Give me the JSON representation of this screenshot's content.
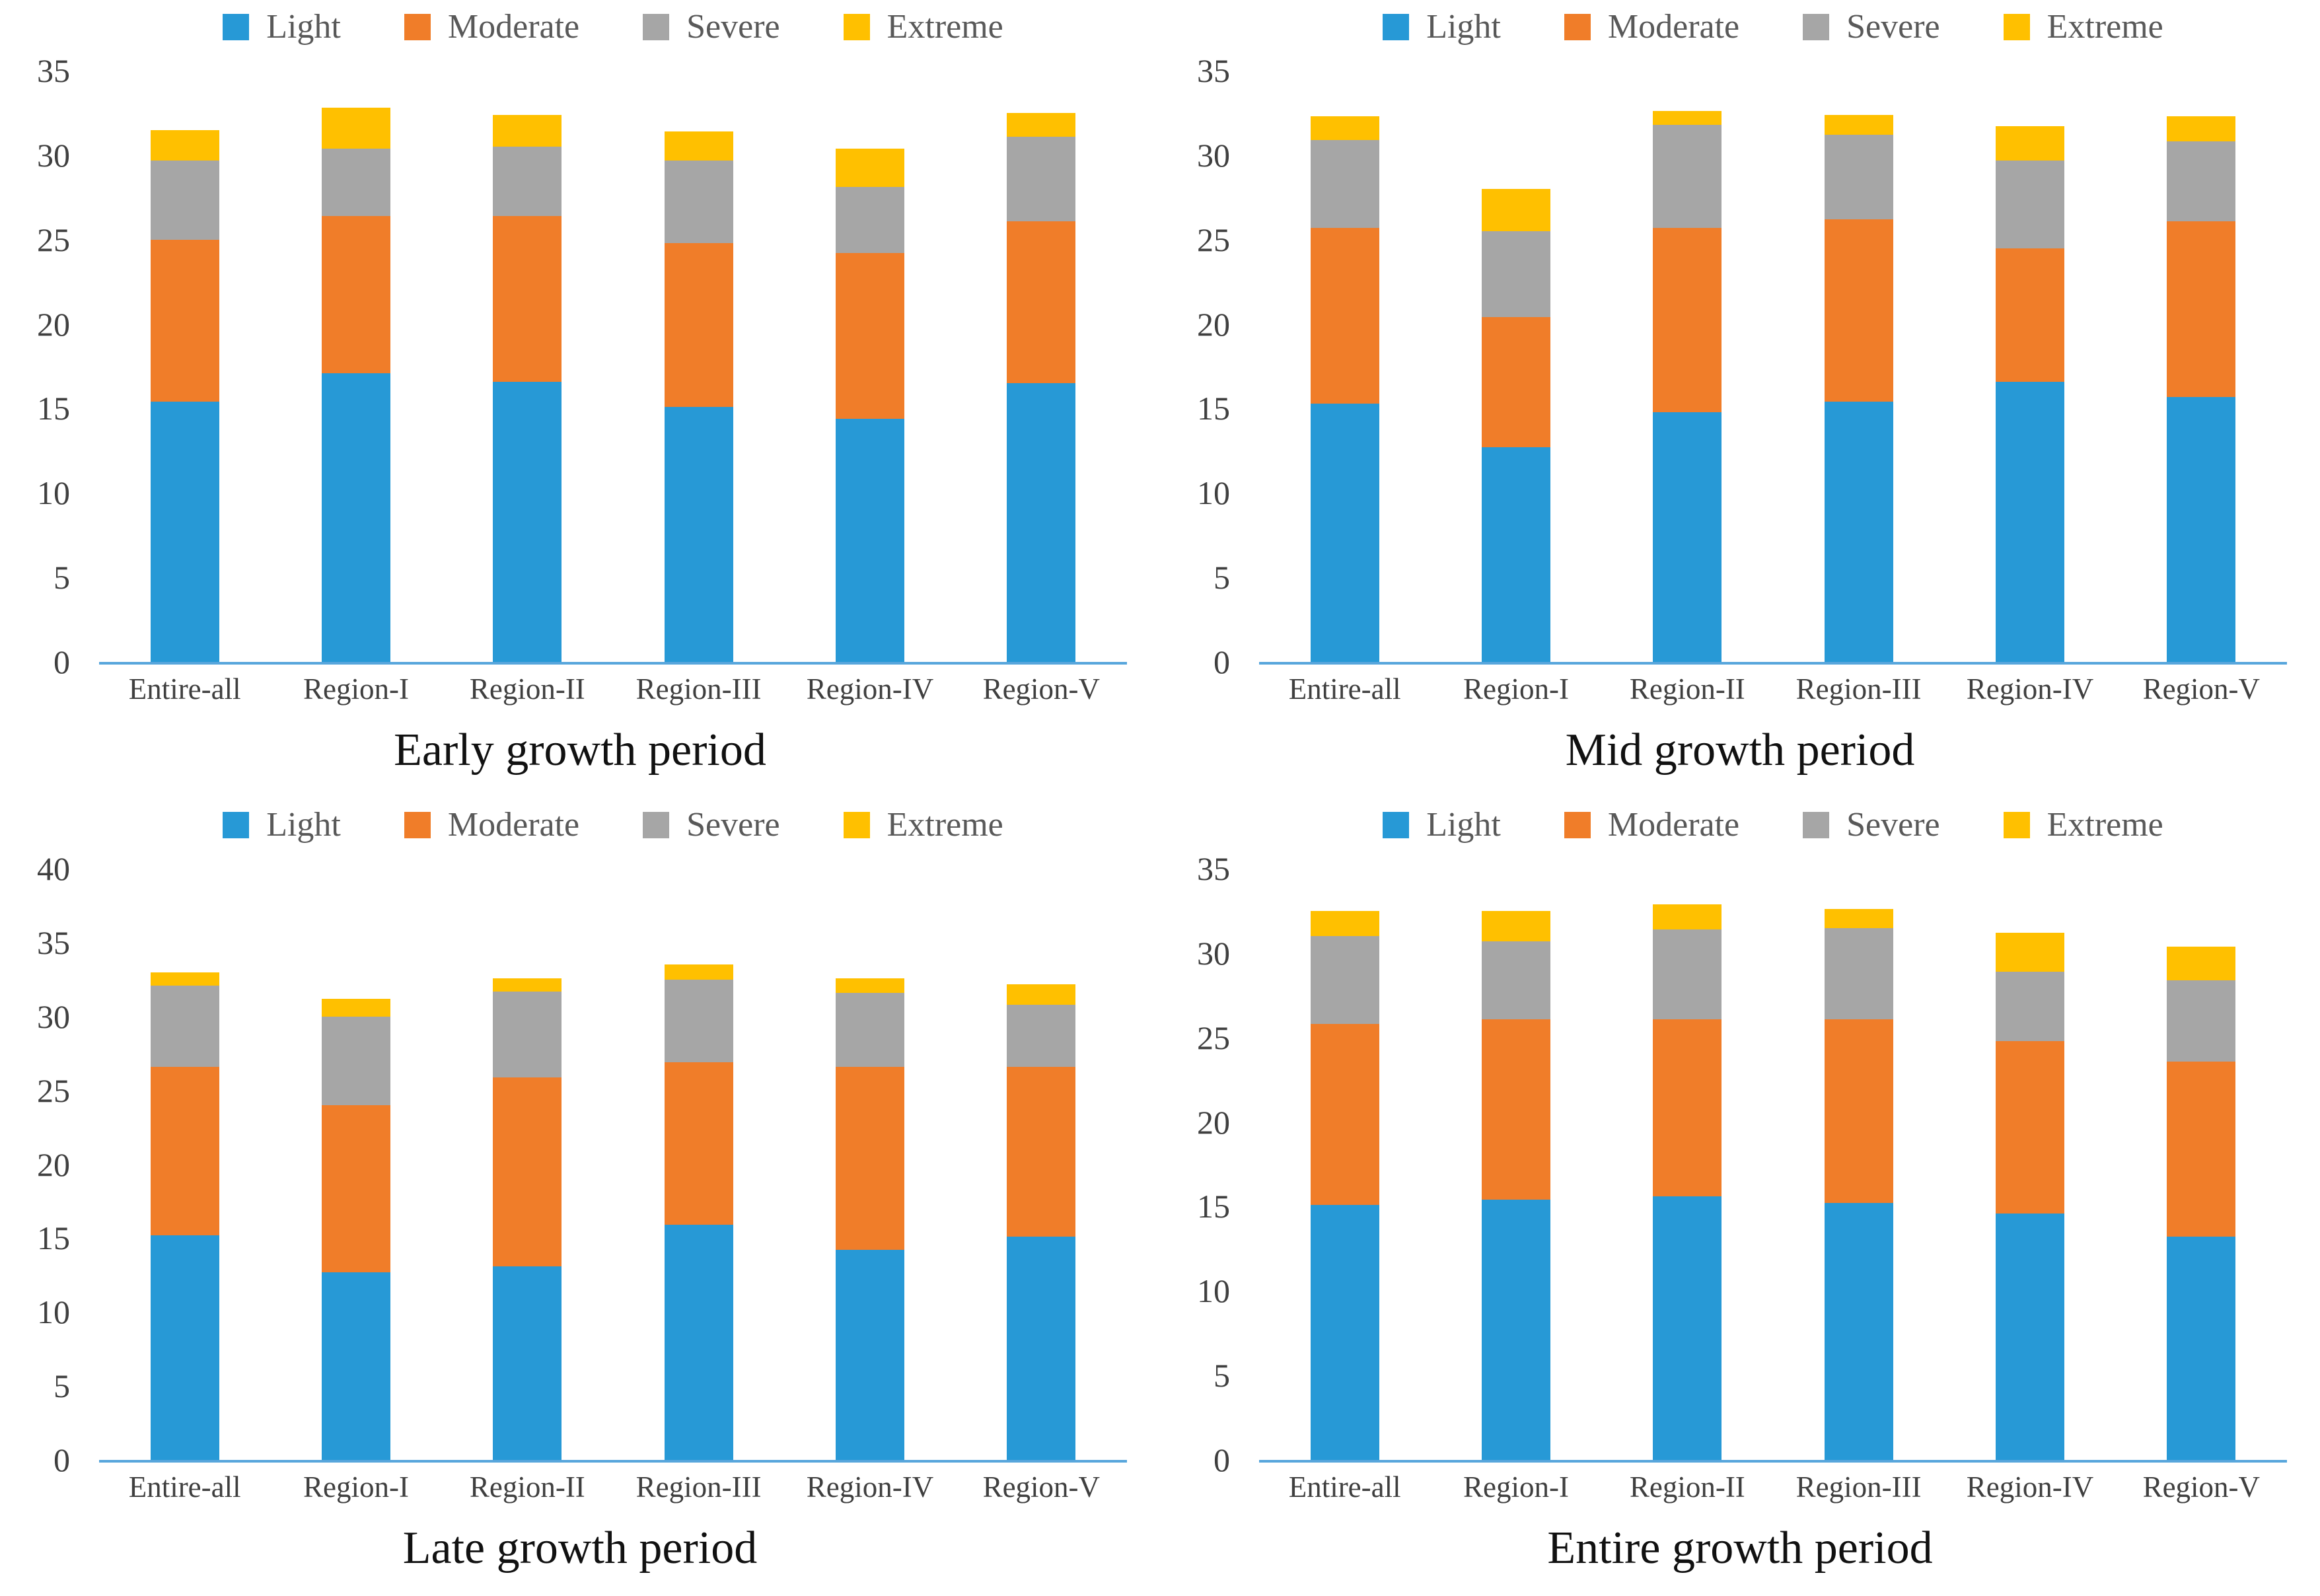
{
  "figure": {
    "background": "#ffffff",
    "panel_captions": [
      "Early growth period",
      "Mid growth period",
      "Late growth period",
      "Entire growth period"
    ]
  },
  "colors": {
    "light": "#2799d6",
    "moderate": "#f07d29",
    "severe": "#a6a6a6",
    "extreme": "#ffc000",
    "baseline_axis": "#58a6dc",
    "tick_text": "#3f3f3f",
    "legend_text": "#595959",
    "caption_text": "#111111"
  },
  "legend": {
    "items": [
      {
        "label": "Light",
        "color": "#2799d6",
        "swatch": "light-swatch"
      },
      {
        "label": "Moderate",
        "color": "#f07d29",
        "swatch": "moderate-swatch"
      },
      {
        "label": "Severe",
        "color": "#a6a6a6",
        "swatch": "severe-swatch"
      },
      {
        "label": "Extreme",
        "color": "#ffc000",
        "swatch": "extreme-swatch"
      }
    ],
    "position": "top"
  },
  "chart_data": [
    {
      "type": "bar",
      "stacked": true,
      "title": "Early growth period",
      "categories": [
        "Entire-all",
        "Region-I",
        "Region-II",
        "Region-III",
        "Region-IV",
        "Region-V"
      ],
      "ylim": [
        0,
        35
      ],
      "ytick_step": 5,
      "yticks": [
        0,
        5,
        10,
        15,
        20,
        25,
        30,
        35
      ],
      "grid": false,
      "legend_position": "top",
      "series": [
        {
          "name": "Light",
          "color": "#2799d6",
          "values": [
            15.4,
            17.1,
            16.6,
            15.1,
            14.4,
            16.5
          ]
        },
        {
          "name": "Moderate",
          "color": "#f07d29",
          "values": [
            9.6,
            9.3,
            9.8,
            9.7,
            9.8,
            9.6
          ]
        },
        {
          "name": "Severe",
          "color": "#a6a6a6",
          "values": [
            4.7,
            4.0,
            4.1,
            4.9,
            3.9,
            5.0
          ]
        },
        {
          "name": "Extreme",
          "color": "#ffc000",
          "values": [
            1.8,
            2.4,
            1.9,
            1.7,
            2.3,
            1.4
          ]
        }
      ]
    },
    {
      "type": "bar",
      "stacked": true,
      "title": "Mid growth period",
      "categories": [
        "Entire-all",
        "Region-I",
        "Region-II",
        "Region-III",
        "Region-IV",
        "Region-V"
      ],
      "ylim": [
        0,
        35
      ],
      "ytick_step": 5,
      "yticks": [
        0,
        5,
        10,
        15,
        20,
        25,
        30,
        35
      ],
      "grid": false,
      "legend_position": "top",
      "series": [
        {
          "name": "Light",
          "color": "#2799d6",
          "values": [
            15.3,
            12.7,
            14.8,
            15.4,
            16.6,
            15.7
          ]
        },
        {
          "name": "Moderate",
          "color": "#f07d29",
          "values": [
            10.4,
            7.7,
            10.9,
            10.8,
            7.9,
            10.4
          ]
        },
        {
          "name": "Severe",
          "color": "#a6a6a6",
          "values": [
            5.2,
            5.1,
            6.1,
            5.0,
            5.2,
            4.7
          ]
        },
        {
          "name": "Extreme",
          "color": "#ffc000",
          "values": [
            1.4,
            2.5,
            0.8,
            1.2,
            2.0,
            1.5
          ]
        }
      ]
    },
    {
      "type": "bar",
      "stacked": true,
      "title": "Late growth period",
      "categories": [
        "Entire-all",
        "Region-I",
        "Region-II",
        "Region-III",
        "Region-IV",
        "Region-V"
      ],
      "ylim": [
        0,
        40
      ],
      "ytick_step": 5,
      "yticks": [
        0,
        5,
        10,
        15,
        20,
        25,
        30,
        35,
        40
      ],
      "grid": false,
      "legend_position": "top",
      "series": [
        {
          "name": "Light",
          "color": "#2799d6",
          "values": [
            15.2,
            12.7,
            13.1,
            15.9,
            14.2,
            15.1
          ]
        },
        {
          "name": "Moderate",
          "color": "#f07d29",
          "values": [
            11.4,
            11.3,
            12.8,
            11.0,
            12.4,
            11.5
          ]
        },
        {
          "name": "Severe",
          "color": "#a6a6a6",
          "values": [
            5.5,
            6.0,
            5.8,
            5.6,
            5.0,
            4.2
          ]
        },
        {
          "name": "Extreme",
          "color": "#ffc000",
          "values": [
            0.9,
            1.2,
            0.9,
            1.0,
            1.0,
            1.4
          ]
        }
      ]
    },
    {
      "type": "bar",
      "stacked": true,
      "title": "Entire growth period",
      "categories": [
        "Entire-all",
        "Region-I",
        "Region-II",
        "Region-III",
        "Region-IV",
        "Region-V"
      ],
      "ylim": [
        0,
        35
      ],
      "ytick_step": 5,
      "yticks": [
        0,
        5,
        10,
        15,
        20,
        25,
        30,
        35
      ],
      "grid": false,
      "legend_position": "top",
      "series": [
        {
          "name": "Light",
          "color": "#2799d6",
          "values": [
            15.1,
            15.4,
            15.6,
            15.2,
            14.6,
            13.2
          ]
        },
        {
          "name": "Moderate",
          "color": "#f07d29",
          "values": [
            10.7,
            10.7,
            10.5,
            10.9,
            10.2,
            10.4
          ]
        },
        {
          "name": "Severe",
          "color": "#a6a6a6",
          "values": [
            5.2,
            4.6,
            5.3,
            5.4,
            4.1,
            4.8
          ]
        },
        {
          "name": "Extreme",
          "color": "#ffc000",
          "values": [
            1.5,
            1.8,
            1.5,
            1.1,
            2.3,
            2.0
          ]
        }
      ]
    }
  ]
}
